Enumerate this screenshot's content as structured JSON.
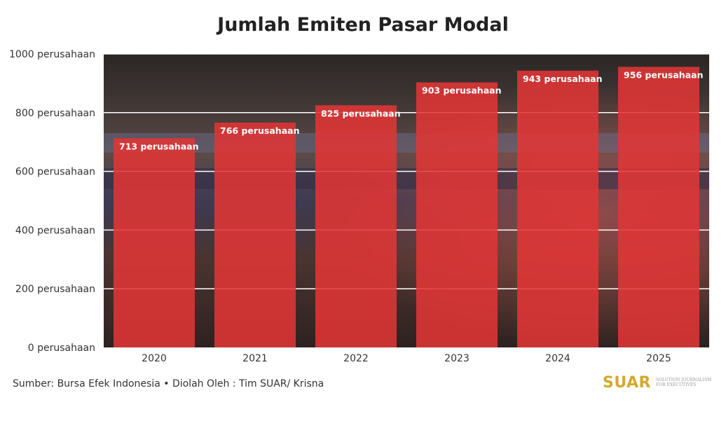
{
  "chart_data": {
    "type": "bar",
    "title": "Jumlah Emiten Pasar Modal",
    "categories": [
      "2020",
      "2021",
      "2022",
      "2023",
      "2024",
      "2025"
    ],
    "values": [
      713,
      766,
      825,
      903,
      943,
      956
    ],
    "data_labels": [
      "713 perusahaan",
      "766 perusahaan",
      "825 perusahaan",
      "903 perusahaan",
      "943 perusahaan",
      "956 perusahaan"
    ],
    "y_ticks": [
      0,
      200,
      400,
      600,
      800,
      1000
    ],
    "y_tick_labels": [
      "0 perusahaan",
      "200 perusahaan",
      "400 perusahaan",
      "600 perusahaan",
      "800 perusahaan",
      "1000 perusahaan"
    ],
    "ylim": [
      0,
      1000
    ],
    "xlabel": "",
    "ylabel": "",
    "grid": true,
    "bar_color": "#e03535"
  },
  "source": "Sumber: Bursa Efek Indonesia • Diolah Oleh : Tim SUAR/ Krisna",
  "logo": {
    "word": "SUAR",
    "tagline": "SOLUTION JOURNALISM FOR EXECUTIVES"
  }
}
